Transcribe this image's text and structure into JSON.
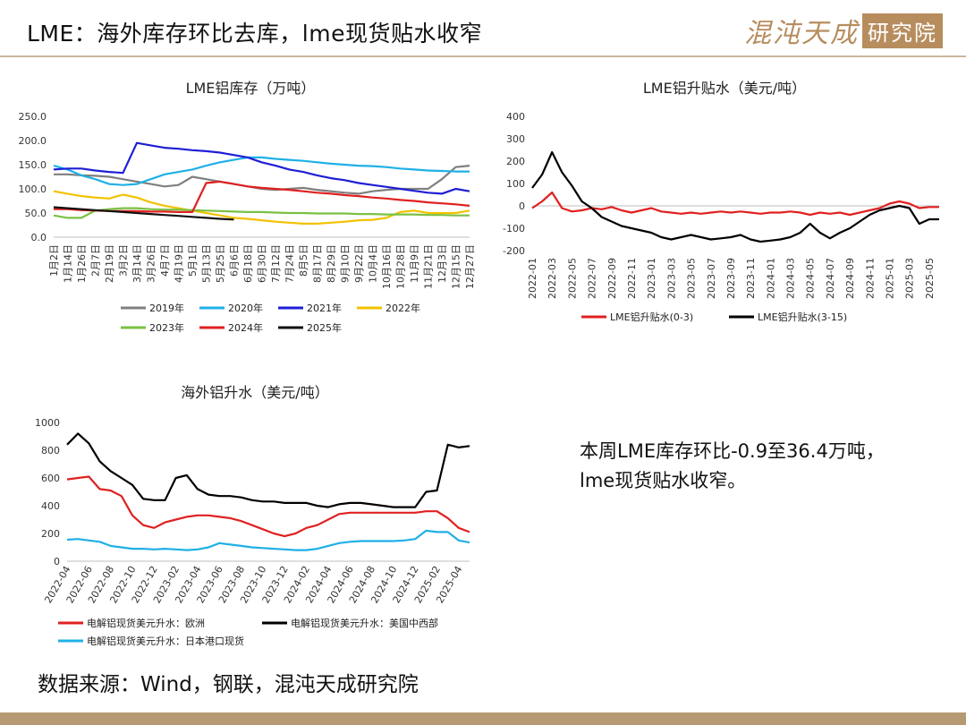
{
  "header": {
    "title": "LME：海外库存环比去库，lme现货贴水收窄"
  },
  "logo": {
    "script_text": "混沌天成",
    "box_text": "研究院"
  },
  "source_note": "数据来源：Wind，钢联，混沌天成研究院",
  "summary_text": "本周LME库存环比-0.9至36.4万吨，lme现货贴水收窄。",
  "colors": {
    "accent": "#b78d5e",
    "footer": "#b59a73",
    "rule": "#c9b79c"
  },
  "chart_data": [
    {
      "type": "line",
      "title": "LME铝库存（万吨）",
      "categories": [
        "1月2日",
        "1月14日",
        "1月26日",
        "2月7日",
        "2月19日",
        "3月2日",
        "3月14日",
        "3月26日",
        "4月7日",
        "4月19日",
        "5月1日",
        "5月13日",
        "5月25日",
        "6月6日",
        "6月18日",
        "6月30日",
        "7月12日",
        "7月24日",
        "8月5日",
        "8月17日",
        "8月29日",
        "9月10日",
        "9月22日",
        "10月4日",
        "10月16日",
        "10月28日",
        "11月9日",
        "11月21日",
        "12月3日",
        "12月15日",
        "12月27日"
      ],
      "ylim": [
        0,
        250
      ],
      "yticks": [
        "250.0",
        "200.0",
        "150.0",
        "100.0",
        "50.0",
        "0.0"
      ],
      "legend_position": "bottom",
      "series": [
        {
          "name": "2019年",
          "color": "#7f7f7f",
          "values": [
            130,
            130,
            128,
            127,
            125,
            120,
            115,
            110,
            105,
            108,
            125,
            120,
            115,
            110,
            105,
            100,
            98,
            100,
            102,
            98,
            95,
            92,
            90,
            95,
            98,
            100,
            100,
            100,
            120,
            145,
            148
          ]
        },
        {
          "name": "2020年",
          "color": "#1fb0e6",
          "values": [
            148,
            140,
            128,
            120,
            110,
            108,
            110,
            120,
            130,
            135,
            140,
            148,
            155,
            160,
            165,
            165,
            162,
            160,
            158,
            155,
            152,
            150,
            148,
            147,
            145,
            142,
            140,
            138,
            137,
            136,
            136
          ]
        },
        {
          "name": "2021年",
          "color": "#1e1ed6",
          "values": [
            140,
            142,
            142,
            138,
            135,
            133,
            195,
            190,
            185,
            183,
            180,
            178,
            175,
            170,
            165,
            155,
            148,
            140,
            135,
            128,
            122,
            118,
            112,
            108,
            104,
            100,
            96,
            92,
            90,
            100,
            95
          ]
        },
        {
          "name": "2022年",
          "color": "#f2c200",
          "values": [
            95,
            90,
            85,
            82,
            80,
            88,
            82,
            72,
            65,
            60,
            55,
            50,
            45,
            40,
            38,
            35,
            32,
            30,
            28,
            28,
            30,
            32,
            35,
            36,
            40,
            52,
            55,
            50,
            50,
            50,
            55
          ]
        },
        {
          "name": "2023年",
          "color": "#7ac143",
          "values": [
            45,
            40,
            40,
            55,
            58,
            60,
            60,
            58,
            57,
            57,
            56,
            55,
            54,
            53,
            52,
            52,
            51,
            50,
            50,
            49,
            49,
            49,
            48,
            48,
            47,
            47,
            47,
            46,
            46,
            45,
            45
          ]
        },
        {
          "name": "2024年",
          "color": "#e02020",
          "values": [
            58,
            58,
            56,
            55,
            54,
            54,
            54,
            53,
            53,
            52,
            52,
            112,
            115,
            110,
            105,
            102,
            100,
            98,
            95,
            92,
            90,
            87,
            85,
            82,
            80,
            77,
            75,
            72,
            70,
            68,
            65
          ]
        },
        {
          "name": "2025年",
          "color": "#111111",
          "values": [
            62,
            60,
            58,
            56,
            54,
            52,
            50,
            48,
            46,
            44,
            42,
            40,
            38,
            36.4,
            null,
            null,
            null,
            null,
            null,
            null,
            null,
            null,
            null,
            null,
            null,
            null,
            null,
            null,
            null,
            null,
            null
          ]
        }
      ]
    },
    {
      "type": "line",
      "title": "LME铝升贴水（美元/吨）",
      "x": [
        "2022-01",
        "2022-02",
        "2022-03",
        "2022-04",
        "2022-05",
        "2022-06",
        "2022-07",
        "2022-08",
        "2022-09",
        "2022-10",
        "2022-11",
        "2022-12",
        "2023-01",
        "2023-02",
        "2023-03",
        "2023-04",
        "2023-05",
        "2023-06",
        "2023-07",
        "2023-08",
        "2023-09",
        "2023-10",
        "2023-11",
        "2023-12",
        "2024-01",
        "2024-02",
        "2024-03",
        "2024-04",
        "2024-05",
        "2024-06",
        "2024-07",
        "2024-08",
        "2024-09",
        "2024-10",
        "2024-11",
        "2024-12",
        "2025-01",
        "2025-02",
        "2025-03",
        "2025-04",
        "2025-05",
        "2025-06"
      ],
      "xticks": [
        "2022-01",
        "2022-03",
        "2022-05",
        "2022-07",
        "2022-09",
        "2022-11",
        "2023-01",
        "2023-03",
        "2023-05",
        "2023-07",
        "2023-09",
        "2023-11",
        "2024-01",
        "2024-03",
        "2024-05",
        "2024-07",
        "2024-09",
        "2024-11",
        "2025-01",
        "2025-03",
        "2025-05"
      ],
      "ylim": [
        -200,
        400
      ],
      "yticks": [
        "400",
        "300",
        "200",
        "100",
        "0",
        "-100",
        "-200"
      ],
      "legend_position": "bottom",
      "series": [
        {
          "name": "LME铝升贴水(0-3)",
          "color": "#e02020",
          "values": [
            -10,
            20,
            60,
            -10,
            -25,
            -20,
            -10,
            -15,
            -5,
            -20,
            -30,
            -20,
            -10,
            -25,
            -30,
            -35,
            -30,
            -35,
            -30,
            -25,
            -30,
            -25,
            -30,
            -35,
            -30,
            -30,
            -25,
            -30,
            -40,
            -30,
            -35,
            -30,
            -40,
            -30,
            -20,
            -10,
            10,
            20,
            10,
            -10,
            -5,
            -5
          ]
        },
        {
          "name": "LME铝升贴水(3-15)",
          "color": "#000000",
          "values": [
            80,
            140,
            240,
            150,
            90,
            20,
            -10,
            -50,
            -70,
            -90,
            -100,
            -110,
            -120,
            -140,
            -150,
            -140,
            -130,
            -140,
            -150,
            -145,
            -140,
            -130,
            -150,
            -160,
            -155,
            -150,
            -140,
            -120,
            -80,
            -120,
            -145,
            -120,
            -100,
            -70,
            -40,
            -20,
            -10,
            0,
            -10,
            -80,
            -60,
            -60
          ]
        }
      ]
    },
    {
      "type": "line",
      "title": "海外铝升水（美元/吨）",
      "x": [
        "2022-04",
        "2022-05",
        "2022-06",
        "2022-07",
        "2022-08",
        "2022-09",
        "2022-10",
        "2022-11",
        "2022-12",
        "2023-01",
        "2023-02",
        "2023-03",
        "2023-04",
        "2023-05",
        "2023-06",
        "2023-07",
        "2023-08",
        "2023-09",
        "2023-10",
        "2023-11",
        "2023-12",
        "2024-01",
        "2024-02",
        "2024-03",
        "2024-04",
        "2024-05",
        "2024-06",
        "2024-07",
        "2024-08",
        "2024-09",
        "2024-10",
        "2024-11",
        "2024-12",
        "2025-01",
        "2025-02",
        "2025-03",
        "2025-04",
        "2025-05"
      ],
      "xticks": [
        "2022-04",
        "2022-06",
        "2022-08",
        "2022-10",
        "2022-12",
        "2023-02",
        "2023-04",
        "2023-06",
        "2023-08",
        "2023-10",
        "2023-12",
        "2024-02",
        "2024-04",
        "2024-06",
        "2024-08",
        "2024-10",
        "2024-12",
        "2025-02",
        "2025-04"
      ],
      "ylim": [
        0,
        1000
      ],
      "yticks": [
        "1000",
        "800",
        "600",
        "400",
        "200",
        "0"
      ],
      "legend_position": "bottom",
      "series": [
        {
          "name": "电解铝现货美元升水：欧洲",
          "color": "#e02020",
          "values": [
            590,
            600,
            610,
            520,
            510,
            470,
            330,
            260,
            240,
            280,
            300,
            320,
            330,
            330,
            320,
            310,
            290,
            260,
            230,
            200,
            180,
            200,
            240,
            260,
            300,
            340,
            350,
            350,
            350,
            350,
            350,
            350,
            350,
            360,
            360,
            310,
            240,
            210
          ]
        },
        {
          "name": "电解铝现货美元升水：美国中西部",
          "color": "#000000",
          "values": [
            840,
            920,
            850,
            720,
            650,
            600,
            550,
            450,
            440,
            440,
            600,
            620,
            520,
            480,
            470,
            470,
            460,
            440,
            430,
            430,
            420,
            420,
            420,
            400,
            390,
            410,
            420,
            420,
            410,
            400,
            390,
            390,
            390,
            500,
            510,
            840,
            820,
            830
          ]
        },
        {
          "name": "电解铝现货美元升水：日本港口现货",
          "color": "#1fb0e6",
          "values": [
            155,
            160,
            150,
            140,
            110,
            100,
            90,
            90,
            85,
            90,
            85,
            80,
            85,
            100,
            130,
            120,
            110,
            100,
            95,
            90,
            85,
            80,
            80,
            90,
            110,
            130,
            140,
            145,
            145,
            145,
            145,
            150,
            160,
            220,
            210,
            210,
            150,
            135
          ]
        }
      ]
    }
  ]
}
